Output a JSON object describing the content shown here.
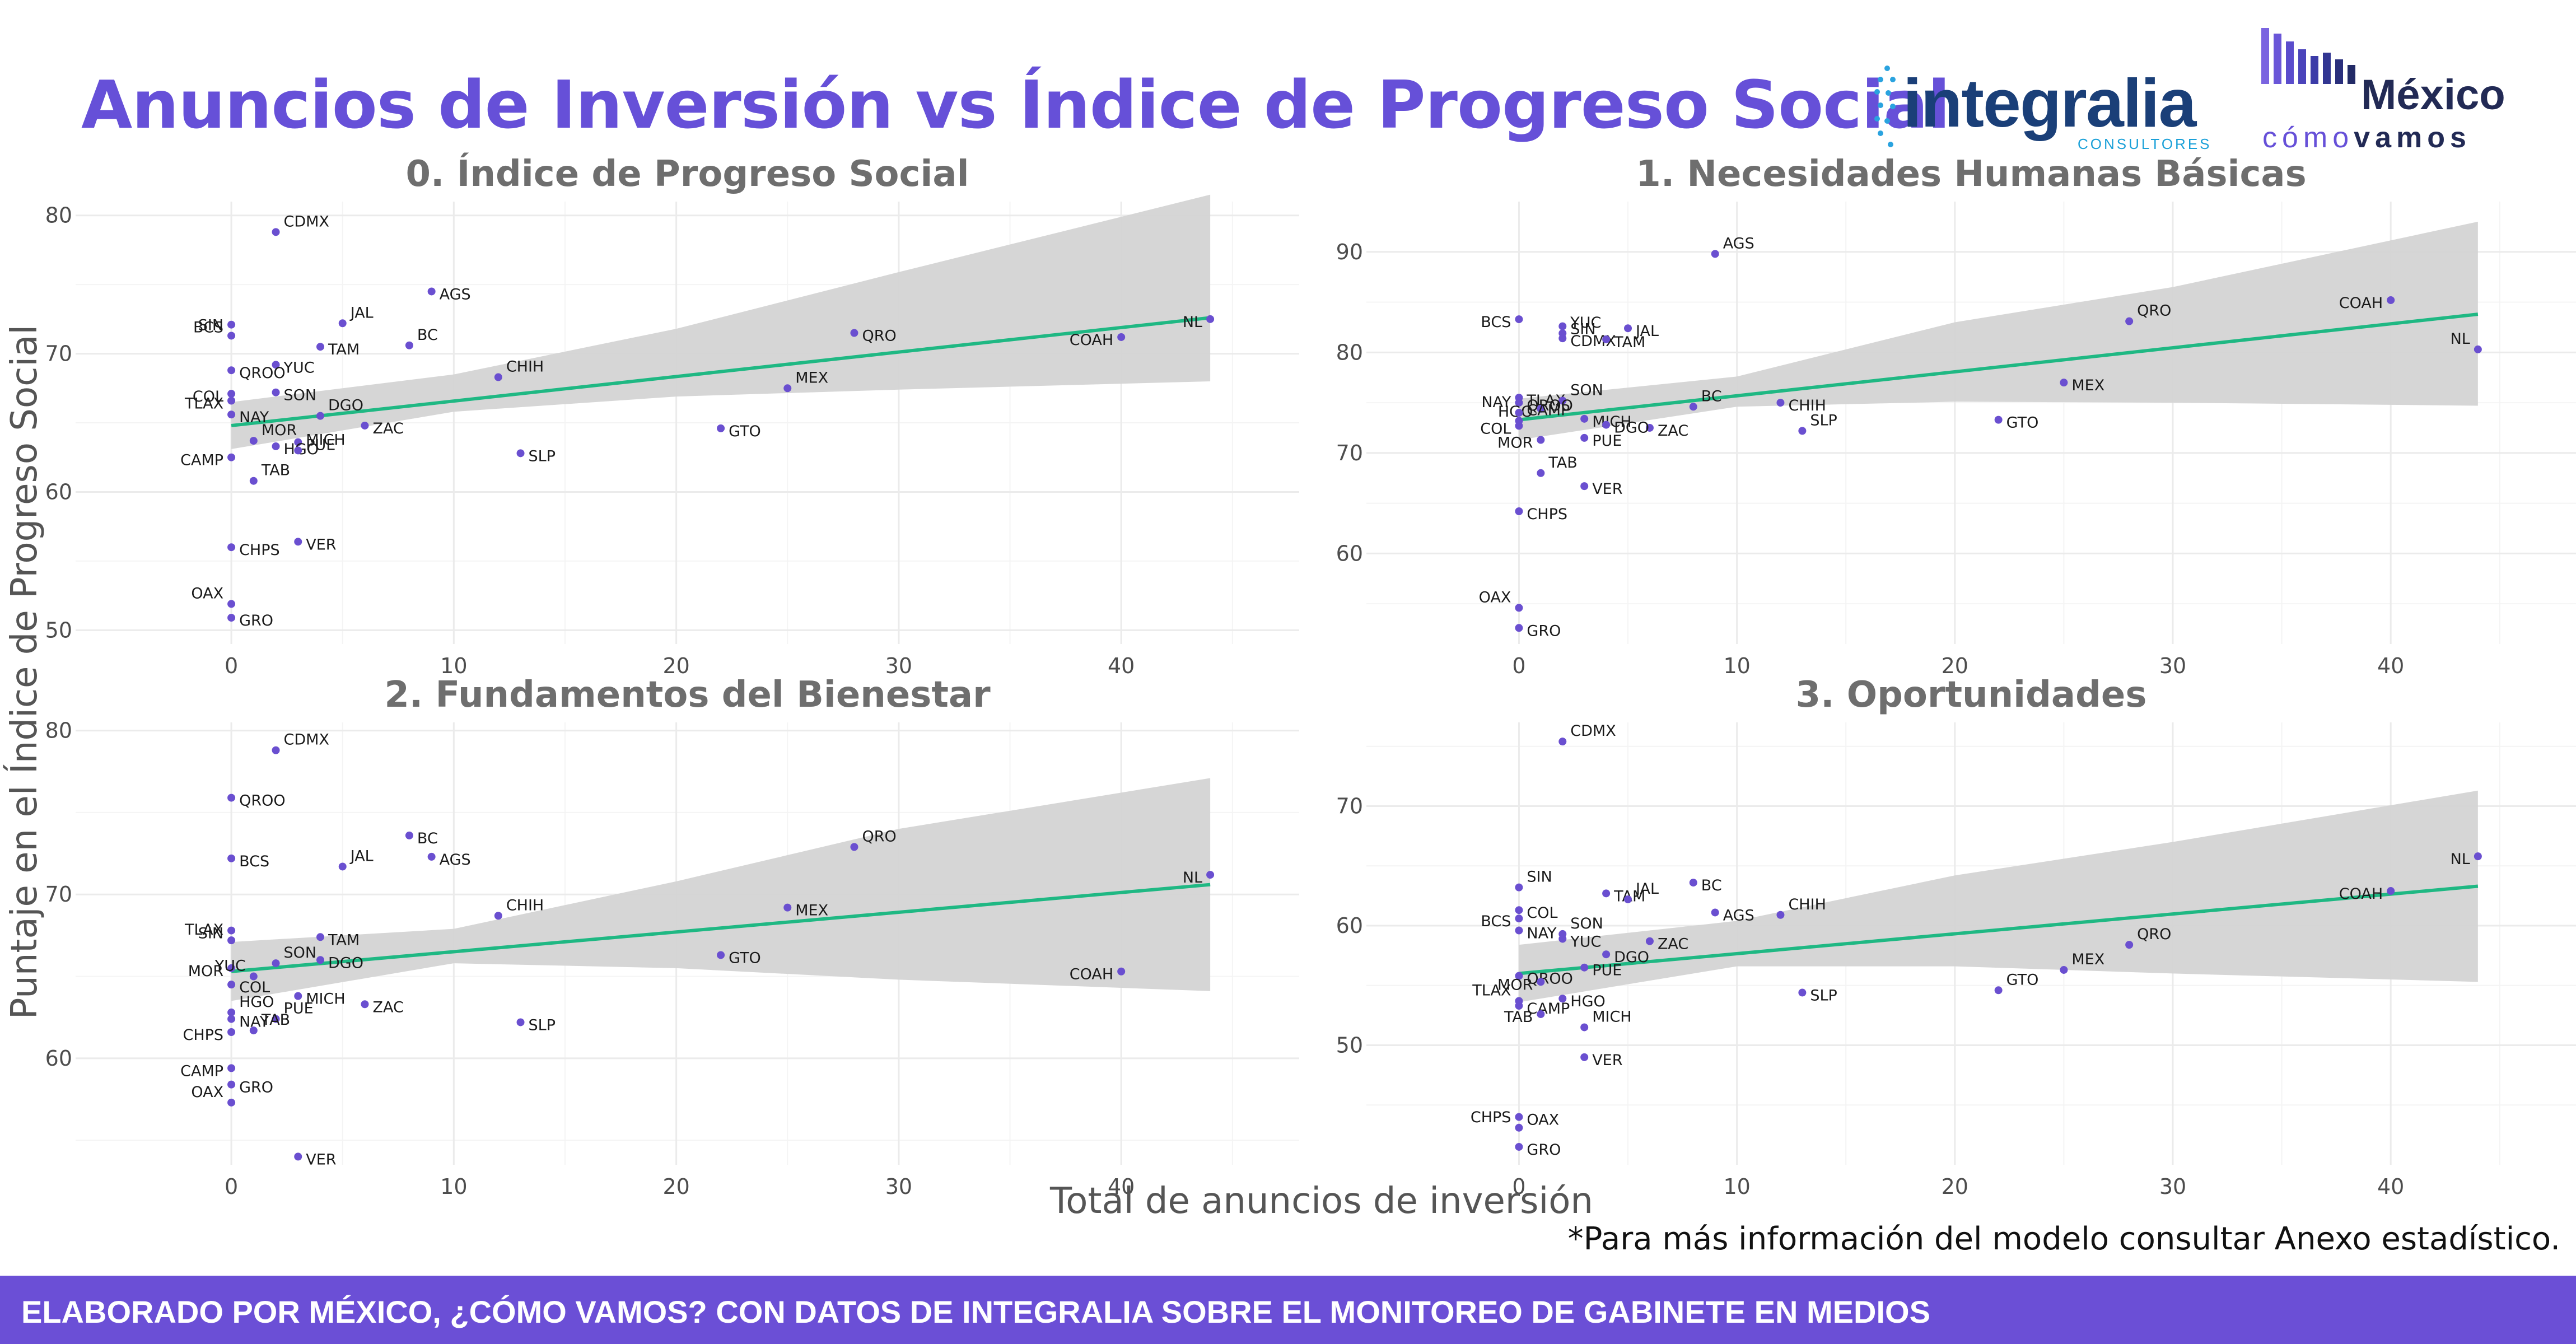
{
  "page": {
    "title": "Anuncios de Inversión vs Índice de Progreso Social",
    "xlabel": "Total de anuncios de inversión",
    "ylabel": "Puntaje en el Índice de Progreso Social",
    "note": "*Para más información del modelo consultar Anexo estadístico.",
    "footer": "ELABORADO POR MÉXICO, ¿CÓMO VAMOS? CON DATOS DE INTEGRALIA SOBRE EL MONITOREO DE GABINETE EN MEDIOS"
  },
  "logos": {
    "integralia": {
      "word": "integralia",
      "sub": "CONSULTORES"
    },
    "mcv": {
      "word": "México",
      "sub_a": "cómo",
      "sub_b": "vamos"
    }
  },
  "colors": {
    "accent": "#6650d8",
    "point": "#6a4fd0",
    "line": "#1fb883",
    "band": "#d4d4d4",
    "grid": "#ebebeb",
    "footer": "#6b4fd6"
  },
  "chart_data": [
    {
      "type": "scatter",
      "title": "0. Índice de Progreso Social",
      "xlim": [
        -7,
        48
      ],
      "ylim": [
        49,
        81
      ],
      "xticks": [
        0,
        10,
        20,
        30,
        40
      ],
      "yticks": [
        50,
        60,
        70,
        80
      ],
      "trend": {
        "x0": 0,
        "y0": 64.8,
        "x1": 44,
        "y1": 72.6
      },
      "band": [
        [
          0,
          63.1,
          66.5
        ],
        [
          10,
          65.8,
          68.5
        ],
        [
          20,
          66.9,
          71.8
        ],
        [
          30,
          67.4,
          75.9
        ],
        [
          44,
          68.0,
          81.5
        ]
      ],
      "points": [
        {
          "label": "CDMX",
          "x": 2,
          "y": 78.8
        },
        {
          "label": "AGS",
          "x": 9,
          "y": 74.5
        },
        {
          "label": "NL",
          "x": 44,
          "y": 72.5
        },
        {
          "label": "JAL",
          "x": 5,
          "y": 72.2
        },
        {
          "label": "BCS",
          "x": 0,
          "y": 72.1
        },
        {
          "label": "QRO",
          "x": 28,
          "y": 71.5
        },
        {
          "label": "SIN",
          "x": 0,
          "y": 71.3
        },
        {
          "label": "COAH",
          "x": 40,
          "y": 71.2
        },
        {
          "label": "TAM",
          "x": 4,
          "y": 70.5
        },
        {
          "label": "BC",
          "x": 8,
          "y": 70.6
        },
        {
          "label": "YUC",
          "x": 2,
          "y": 69.2
        },
        {
          "label": "QROO",
          "x": 0,
          "y": 68.8
        },
        {
          "label": "CHIH",
          "x": 12,
          "y": 68.3
        },
        {
          "label": "SON",
          "x": 2,
          "y": 67.2
        },
        {
          "label": "COL",
          "x": 0,
          "y": 67.1
        },
        {
          "label": "MEX",
          "x": 25,
          "y": 67.5
        },
        {
          "label": "TLAX",
          "x": 0,
          "y": 66.6
        },
        {
          "label": "NAY",
          "x": 0,
          "y": 65.6
        },
        {
          "label": "DGO",
          "x": 4,
          "y": 65.5
        },
        {
          "label": "ZAC",
          "x": 6,
          "y": 64.8
        },
        {
          "label": "GTO",
          "x": 22,
          "y": 64.6
        },
        {
          "label": "MOR",
          "x": 1,
          "y": 63.7
        },
        {
          "label": "PUE",
          "x": 3,
          "y": 63.6
        },
        {
          "label": "HGO",
          "x": 2,
          "y": 63.3
        },
        {
          "label": "MICH",
          "x": 3,
          "y": 63.0
        },
        {
          "label": "SLP",
          "x": 13,
          "y": 62.8
        },
        {
          "label": "CAMP",
          "x": 0,
          "y": 62.5
        },
        {
          "label": "TAB",
          "x": 1,
          "y": 60.8
        },
        {
          "label": "VER",
          "x": 3,
          "y": 56.4
        },
        {
          "label": "CHPS",
          "x": 0,
          "y": 56.0
        },
        {
          "label": "OAX",
          "x": 0,
          "y": 51.9
        },
        {
          "label": "GRO",
          "x": 0,
          "y": 50.9
        }
      ]
    },
    {
      "type": "scatter",
      "title": "1. Necesidades Humanas Básicas",
      "xlim": [
        -7,
        48.5
      ],
      "ylim": [
        51,
        95
      ],
      "xticks": [
        0,
        10,
        20,
        30,
        40
      ],
      "yticks": [
        60,
        70,
        80,
        90
      ],
      "trend": {
        "x0": 0,
        "y0": 73.3,
        "x1": 44,
        "y1": 83.8
      },
      "band": [
        [
          0,
          71.3,
          75.4
        ],
        [
          10,
          74.6,
          77.6
        ],
        [
          20,
          75.1,
          83.0
        ],
        [
          30,
          75.0,
          86.5
        ],
        [
          44,
          74.7,
          93.0
        ]
      ],
      "points": [
        {
          "label": "AGS",
          "x": 9,
          "y": 89.8
        },
        {
          "label": "COAH",
          "x": 40,
          "y": 85.2
        },
        {
          "label": "BCS",
          "x": 0,
          "y": 83.3
        },
        {
          "label": "QRO",
          "x": 28,
          "y": 83.1
        },
        {
          "label": "JAL",
          "x": 5,
          "y": 82.4
        },
        {
          "label": "SIN",
          "x": 2,
          "y": 82.6
        },
        {
          "label": "YUC",
          "x": 2,
          "y": 81.9
        },
        {
          "label": "CDMX",
          "x": 2,
          "y": 81.4
        },
        {
          "label": "TAM",
          "x": 4,
          "y": 81.3
        },
        {
          "label": "NL",
          "x": 44,
          "y": 80.3
        },
        {
          "label": "MEX",
          "x": 25,
          "y": 77.0
        },
        {
          "label": "TLAX",
          "x": 0,
          "y": 75.5
        },
        {
          "label": "SON",
          "x": 2,
          "y": 75.2
        },
        {
          "label": "QROO",
          "x": 0,
          "y": 75.0
        },
        {
          "label": "HGO",
          "x": 1,
          "y": 74.4
        },
        {
          "label": "BC",
          "x": 8,
          "y": 74.6
        },
        {
          "label": "CHIH",
          "x": 12,
          "y": 75.0
        },
        {
          "label": "MICH",
          "x": 3,
          "y": 73.4
        },
        {
          "label": "NAY",
          "x": 0,
          "y": 74.0
        },
        {
          "label": "ZAC",
          "x": 6,
          "y": 72.5
        },
        {
          "label": "COL",
          "x": 0,
          "y": 72.7
        },
        {
          "label": "CAMP",
          "x": 0,
          "y": 73.2
        },
        {
          "label": "DGO",
          "x": 4,
          "y": 72.8
        },
        {
          "label": "GTO",
          "x": 22,
          "y": 73.3
        },
        {
          "label": "SLP",
          "x": 13,
          "y": 72.2
        },
        {
          "label": "PUE",
          "x": 3,
          "y": 71.5
        },
        {
          "label": "MOR",
          "x": 1,
          "y": 71.3
        },
        {
          "label": "TAB",
          "x": 1,
          "y": 68.0
        },
        {
          "label": "VER",
          "x": 3,
          "y": 66.7
        },
        {
          "label": "CHPS",
          "x": 0,
          "y": 64.2
        },
        {
          "label": "OAX",
          "x": 0,
          "y": 54.6
        },
        {
          "label": "GRO",
          "x": 0,
          "y": 52.6
        }
      ]
    },
    {
      "type": "scatter",
      "title": "2. Fundamentos del Bienestar",
      "xlim": [
        -7,
        48
      ],
      "ylim": [
        53.5,
        80.5
      ],
      "xticks": [
        0,
        10,
        20,
        30,
        40
      ],
      "yticks": [
        60,
        70,
        80
      ],
      "trend": {
        "x0": 0,
        "y0": 65.3,
        "x1": 44,
        "y1": 70.6
      },
      "band": [
        [
          0,
          63.5,
          67.1
        ],
        [
          10,
          65.8,
          67.9
        ],
        [
          20,
          65.5,
          70.8
        ],
        [
          30,
          64.8,
          74.0
        ],
        [
          44,
          64.1,
          77.1
        ]
      ],
      "points": [
        {
          "label": "CDMX",
          "x": 2,
          "y": 78.8
        },
        {
          "label": "QROO",
          "x": 0,
          "y": 75.9
        },
        {
          "label": "BC",
          "x": 8,
          "y": 73.6
        },
        {
          "label": "QRO",
          "x": 28,
          "y": 72.9
        },
        {
          "label": "AGS",
          "x": 9,
          "y": 72.3
        },
        {
          "label": "BCS",
          "x": 0,
          "y": 72.2
        },
        {
          "label": "JAL",
          "x": 5,
          "y": 71.7
        },
        {
          "label": "NL",
          "x": 44,
          "y": 71.2
        },
        {
          "label": "MEX",
          "x": 25,
          "y": 69.2
        },
        {
          "label": "CHIH",
          "x": 12,
          "y": 68.7
        },
        {
          "label": "SIN",
          "x": 0,
          "y": 67.8
        },
        {
          "label": "TAM",
          "x": 4,
          "y": 67.4
        },
        {
          "label": "TLAX",
          "x": 0,
          "y": 67.2
        },
        {
          "label": "GTO",
          "x": 22,
          "y": 66.3
        },
        {
          "label": "DGO",
          "x": 4,
          "y": 66.0
        },
        {
          "label": "SON",
          "x": 2,
          "y": 65.8
        },
        {
          "label": "MOR",
          "x": 0,
          "y": 65.5
        },
        {
          "label": "COAH",
          "x": 40,
          "y": 65.3
        },
        {
          "label": "YUC",
          "x": 1,
          "y": 65.0
        },
        {
          "label": "COL",
          "x": 0,
          "y": 64.5
        },
        {
          "label": "MICH",
          "x": 3,
          "y": 63.8
        },
        {
          "label": "HGO",
          "x": 0,
          "y": 62.8
        },
        {
          "label": "ZAC",
          "x": 6,
          "y": 63.3
        },
        {
          "label": "NAY",
          "x": 0,
          "y": 62.4
        },
        {
          "label": "PUE",
          "x": 2,
          "y": 62.4
        },
        {
          "label": "SLP",
          "x": 13,
          "y": 62.2
        },
        {
          "label": "CHPS",
          "x": 0,
          "y": 61.6
        },
        {
          "label": "TAB",
          "x": 1,
          "y": 61.7
        },
        {
          "label": "CAMP",
          "x": 0,
          "y": 59.4
        },
        {
          "label": "GRO",
          "x": 0,
          "y": 58.4
        },
        {
          "label": "OAX",
          "x": 0,
          "y": 57.3
        },
        {
          "label": "VER",
          "x": 3,
          "y": 54.0
        }
      ]
    },
    {
      "type": "scatter",
      "title": "3. Oportunidades",
      "xlim": [
        -7,
        48.5
      ],
      "ylim": [
        40,
        77
      ],
      "xticks": [
        0,
        10,
        20,
        30,
        40
      ],
      "yticks": [
        50,
        60,
        70
      ],
      "trend": {
        "x0": 0,
        "y0": 56.0,
        "x1": 44,
        "y1": 63.3
      },
      "band": [
        [
          0,
          53.6,
          58.4
        ],
        [
          10,
          56.6,
          60.4
        ],
        [
          20,
          56.6,
          64.2
        ],
        [
          30,
          56.0,
          67.0
        ],
        [
          44,
          55.3,
          71.3
        ]
      ],
      "points": [
        {
          "label": "CDMX",
          "x": 2,
          "y": 75.4
        },
        {
          "label": "NL",
          "x": 44,
          "y": 65.8
        },
        {
          "label": "BC",
          "x": 8,
          "y": 63.6
        },
        {
          "label": "SIN",
          "x": 0,
          "y": 63.2
        },
        {
          "label": "COAH",
          "x": 40,
          "y": 62.9
        },
        {
          "label": "TAM",
          "x": 4,
          "y": 62.7
        },
        {
          "label": "JAL",
          "x": 5,
          "y": 62.2
        },
        {
          "label": "COL",
          "x": 0,
          "y": 61.3
        },
        {
          "label": "AGS",
          "x": 9,
          "y": 61.1
        },
        {
          "label": "CHIH",
          "x": 12,
          "y": 60.9
        },
        {
          "label": "BCS",
          "x": 0,
          "y": 60.6
        },
        {
          "label": "NAY",
          "x": 0,
          "y": 59.6
        },
        {
          "label": "SON",
          "x": 2,
          "y": 59.3
        },
        {
          "label": "YUC",
          "x": 2,
          "y": 58.9
        },
        {
          "label": "ZAC",
          "x": 6,
          "y": 58.7
        },
        {
          "label": "QRO",
          "x": 28,
          "y": 58.4
        },
        {
          "label": "DGO",
          "x": 4,
          "y": 57.6
        },
        {
          "label": "PUE",
          "x": 3,
          "y": 56.5
        },
        {
          "label": "MEX",
          "x": 25,
          "y": 56.3
        },
        {
          "label": "QROO",
          "x": 0,
          "y": 55.8
        },
        {
          "label": "MOR",
          "x": 1,
          "y": 55.3
        },
        {
          "label": "GTO",
          "x": 22,
          "y": 54.6
        },
        {
          "label": "SLP",
          "x": 13,
          "y": 54.4
        },
        {
          "label": "HGO",
          "x": 2,
          "y": 53.9
        },
        {
          "label": "TLAX",
          "x": 0,
          "y": 53.7
        },
        {
          "label": "CAMP",
          "x": 0,
          "y": 53.3
        },
        {
          "label": "TAB",
          "x": 1,
          "y": 52.6
        },
        {
          "label": "MICH",
          "x": 3,
          "y": 51.5
        },
        {
          "label": "VER",
          "x": 3,
          "y": 49.0
        },
        {
          "label": "OAX",
          "x": 0,
          "y": 44.0
        },
        {
          "label": "CHPS",
          "x": 0,
          "y": 43.1
        },
        {
          "label": "GRO",
          "x": 0,
          "y": 41.5
        }
      ]
    }
  ]
}
